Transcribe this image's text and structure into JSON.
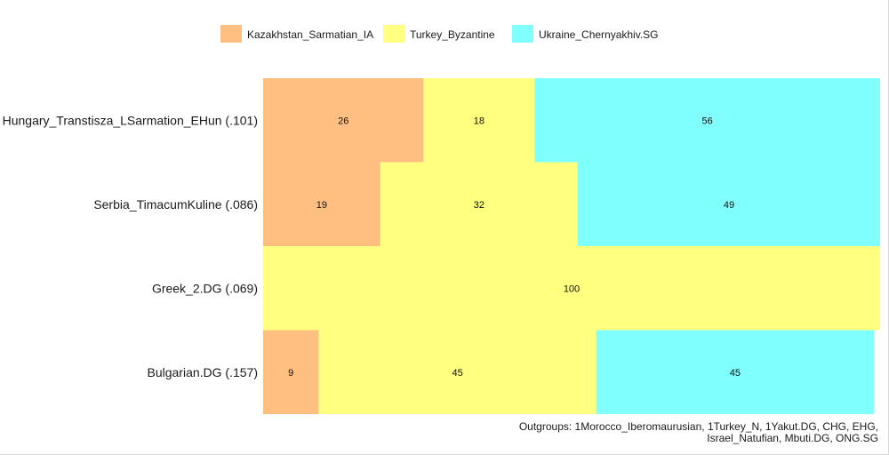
{
  "chart_data": {
    "type": "bar",
    "orientation": "horizontal",
    "stacked": true,
    "percent": true,
    "categories": [
      "Hungary_Transtisza_LSarmation_EHun (.101)",
      "Serbia_TimacumKuline (.086)",
      "Greek_2.DG (.069)",
      "Bulgarian.DG (.157)"
    ],
    "series": [
      {
        "name": "Kazakhstan_Sarmatian_IA",
        "color": "#FFBF80",
        "values": [
          26,
          19,
          0,
          9
        ]
      },
      {
        "name": "Turkey_Byzantine",
        "color": "#FFFF80",
        "values": [
          18,
          32,
          100,
          45
        ]
      },
      {
        "name": "Ukraine_Chernyakhiv.SG",
        "color": "#80FFFF",
        "values": [
          56,
          49,
          0,
          45
        ]
      }
    ],
    "xlim": [
      0,
      100
    ],
    "grid": false,
    "legend_position": "top",
    "footnote": [
      "Outgroups: 1Morocco_Iberomaurusian, 1Turkey_N, 1Yakut.DG, CHG, EHG,",
      "Israel_Natufian, Mbuti.DG, ONG.SG"
    ]
  }
}
